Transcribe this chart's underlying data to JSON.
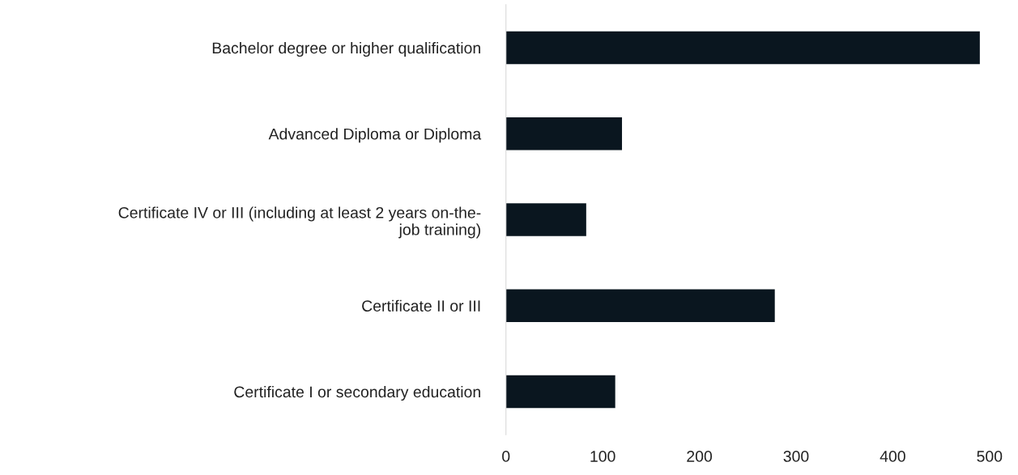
{
  "chart_data": {
    "type": "bar",
    "orientation": "horizontal",
    "categories": [
      "Bachelor degree or higher qualification",
      "Advanced Diploma or Diploma",
      "Certificate IV or III (including at least 2 years on-the-\njob training)",
      "Certificate II or III",
      "Certificate I or secondary education"
    ],
    "values": [
      490,
      120,
      83,
      278,
      113
    ],
    "color": "#0a161f",
    "xlim": [
      0,
      500
    ],
    "xticks": [
      0,
      100,
      200,
      300,
      400,
      500
    ],
    "grid": false,
    "legend": false
  }
}
